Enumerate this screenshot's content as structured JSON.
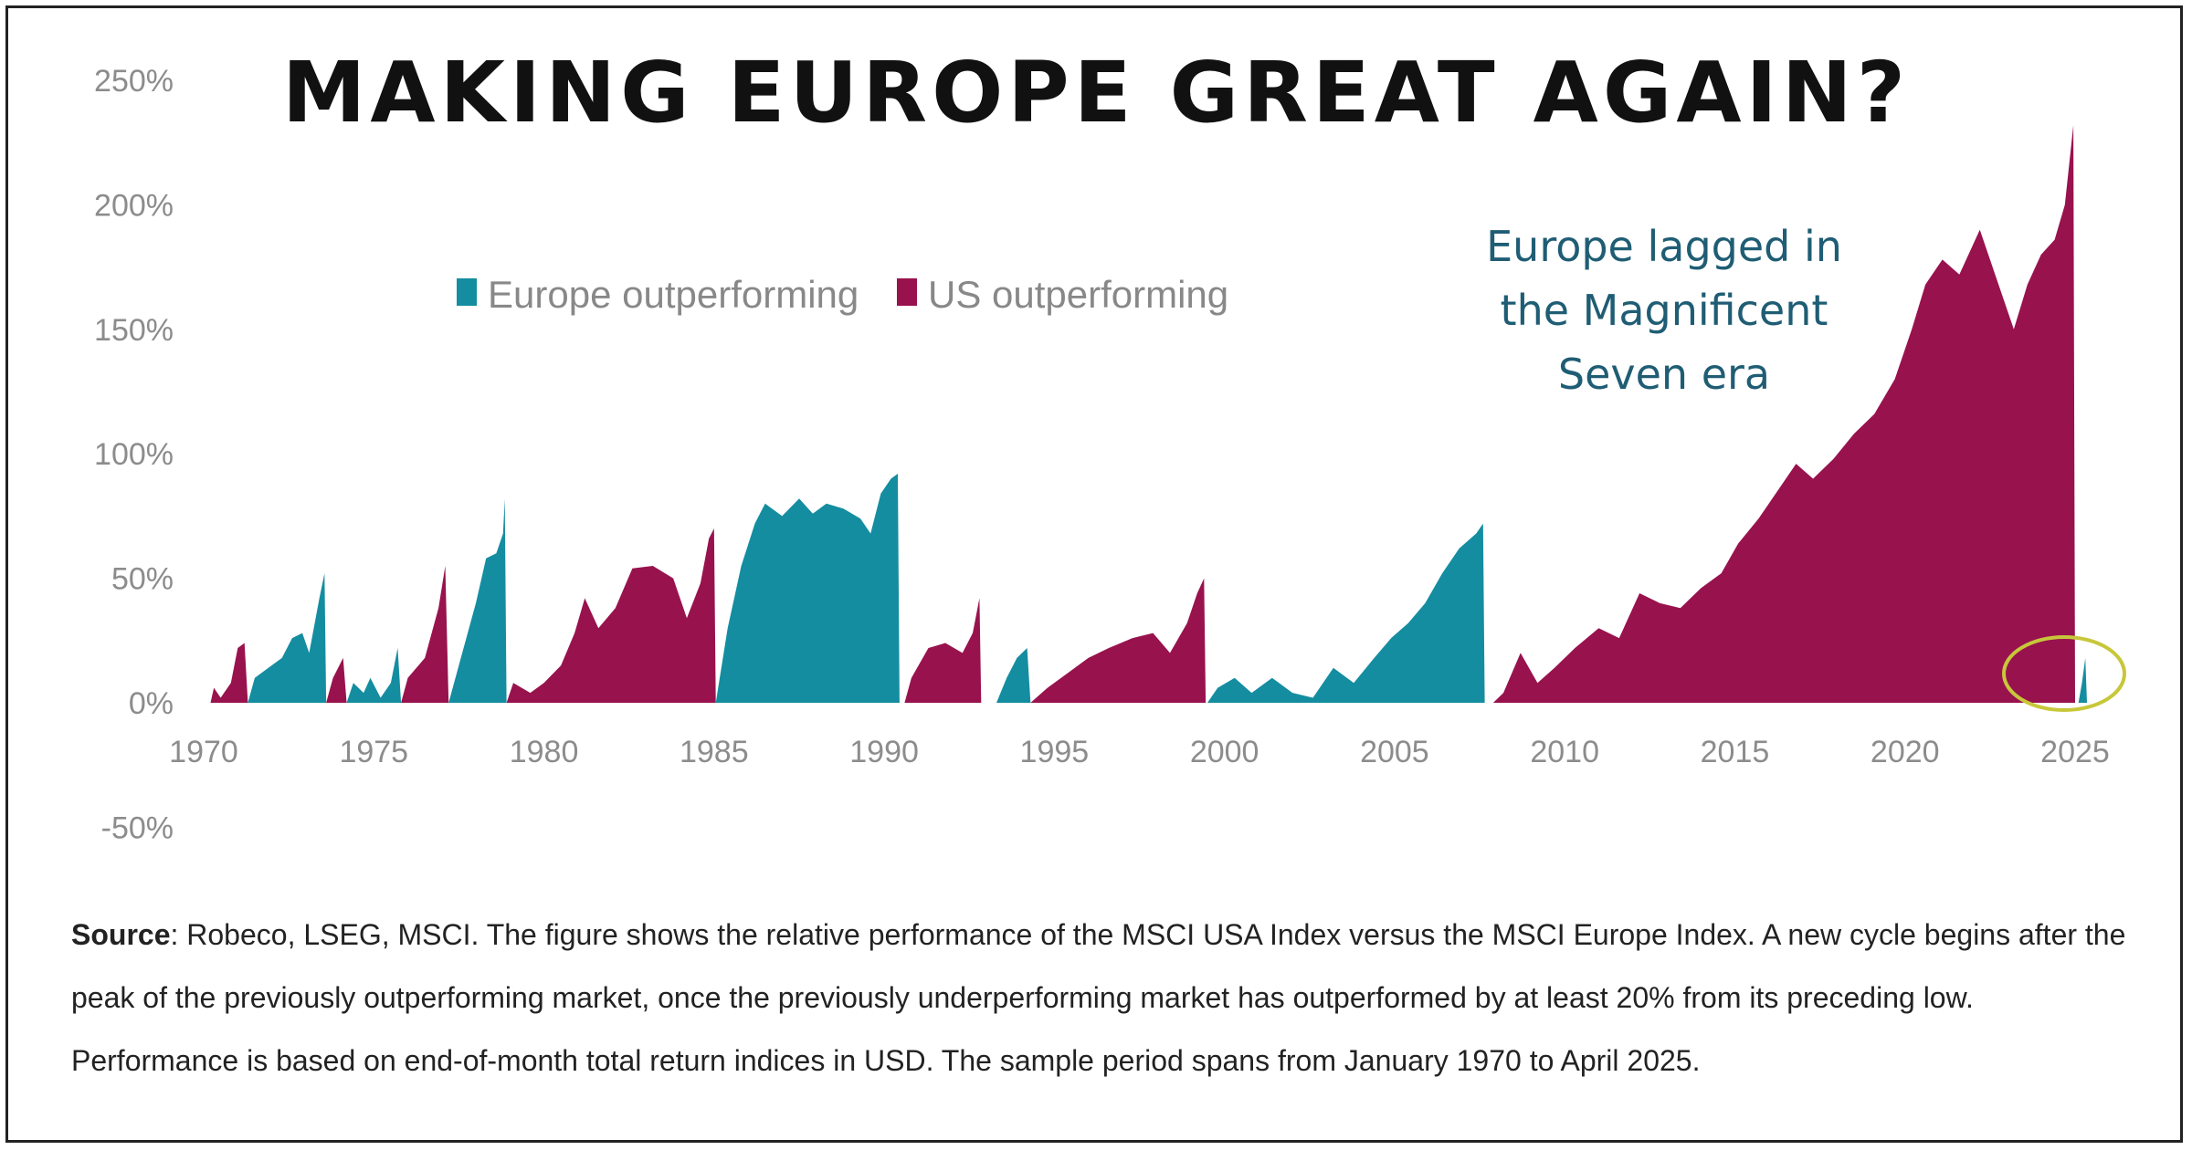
{
  "title": "MAKING EUROPE GREAT AGAIN?",
  "colors": {
    "europe": "#148da0",
    "us": "#98124e",
    "annotation_text": "#1f5d74",
    "circle": "#c7c73a"
  },
  "annotation": {
    "lines": [
      "Europe lagged in",
      "the Magnificent",
      "Seven era"
    ]
  },
  "source": {
    "label": "Source",
    "text": ": Robeco, LSEG, MSCI. The figure shows the relative performance of the MSCI USA Index versus the MSCI Europe Index. A new cycle begins after the peak of the previously outperforming market, once the previously underperforming market has outperformed by at least 20% from its preceding low. Performance is based on end-of-month total return indices in USD. The sample period spans from January 1970 to April 2025."
  },
  "chart_data": {
    "type": "area",
    "x_range": [
      1970,
      2026.2
    ],
    "ylim": [
      -50,
      250
    ],
    "y_ticks": [
      "250%",
      "200%",
      "150%",
      "100%",
      "50%",
      "0%",
      "-50%"
    ],
    "y_tick_values": [
      250,
      200,
      150,
      100,
      50,
      0,
      -50
    ],
    "x_ticks": [
      "1970",
      "1975",
      "1980",
      "1985",
      "1990",
      "1995",
      "2000",
      "2005",
      "2010",
      "2015",
      "2020",
      "2025"
    ],
    "x_tick_values": [
      1970,
      1975,
      1980,
      1985,
      1990,
      1995,
      2000,
      2005,
      2010,
      2015,
      2020,
      2025
    ],
    "legend": [
      {
        "name": "Europe outperforming",
        "color": "#148da0"
      },
      {
        "name": "US outperforming",
        "color": "#98124e"
      }
    ],
    "series": [
      {
        "name": "US outperforming",
        "points": [
          [
            1970.2,
            0
          ],
          [
            1970.3,
            6
          ],
          [
            1970.5,
            2
          ],
          [
            1970.8,
            8
          ],
          [
            1971.0,
            22
          ],
          [
            1971.2,
            24
          ],
          [
            1971.3,
            0
          ]
        ]
      },
      {
        "name": "Europe outperforming",
        "points": [
          [
            1971.3,
            0
          ],
          [
            1971.5,
            10
          ],
          [
            1971.9,
            14
          ],
          [
            1972.3,
            18
          ],
          [
            1972.6,
            26
          ],
          [
            1972.9,
            28
          ],
          [
            1973.1,
            20
          ],
          [
            1973.4,
            42
          ],
          [
            1973.55,
            52
          ],
          [
            1973.6,
            0
          ]
        ]
      },
      {
        "name": "US outperforming",
        "points": [
          [
            1973.6,
            0
          ],
          [
            1973.8,
            10
          ],
          [
            1974.1,
            18
          ],
          [
            1974.2,
            0
          ]
        ]
      },
      {
        "name": "Europe outperforming",
        "points": [
          [
            1974.2,
            0
          ],
          [
            1974.4,
            8
          ],
          [
            1974.7,
            4
          ],
          [
            1974.9,
            10
          ],
          [
            1975.2,
            2
          ],
          [
            1975.5,
            8
          ],
          [
            1975.7,
            22
          ],
          [
            1975.8,
            0
          ]
        ]
      },
      {
        "name": "US outperforming",
        "points": [
          [
            1975.8,
            0
          ],
          [
            1976.0,
            10
          ],
          [
            1976.5,
            18
          ],
          [
            1976.9,
            38
          ],
          [
            1977.1,
            55
          ],
          [
            1977.2,
            0
          ]
        ]
      },
      {
        "name": "Europe outperforming",
        "points": [
          [
            1977.2,
            0
          ],
          [
            1977.6,
            20
          ],
          [
            1978.0,
            40
          ],
          [
            1978.3,
            58
          ],
          [
            1978.6,
            60
          ],
          [
            1978.8,
            68
          ],
          [
            1978.85,
            82
          ],
          [
            1978.9,
            0
          ]
        ]
      },
      {
        "name": "US outperforming",
        "points": [
          [
            1978.9,
            0
          ],
          [
            1979.1,
            8
          ],
          [
            1979.6,
            4
          ],
          [
            1980.0,
            8
          ],
          [
            1980.5,
            15
          ],
          [
            1980.9,
            28
          ],
          [
            1981.2,
            42
          ],
          [
            1981.6,
            30
          ],
          [
            1982.1,
            38
          ],
          [
            1982.6,
            54
          ],
          [
            1983.2,
            55
          ],
          [
            1983.8,
            50
          ],
          [
            1984.2,
            34
          ],
          [
            1984.6,
            48
          ],
          [
            1984.85,
            66
          ],
          [
            1985.0,
            70
          ],
          [
            1985.05,
            0
          ]
        ]
      },
      {
        "name": "Europe outperforming",
        "points": [
          [
            1985.05,
            0
          ],
          [
            1985.4,
            30
          ],
          [
            1985.8,
            55
          ],
          [
            1986.2,
            72
          ],
          [
            1986.5,
            80
          ],
          [
            1987.0,
            75
          ],
          [
            1987.5,
            82
          ],
          [
            1987.9,
            76
          ],
          [
            1988.3,
            80
          ],
          [
            1988.8,
            78
          ],
          [
            1989.3,
            74
          ],
          [
            1989.6,
            68
          ],
          [
            1989.9,
            84
          ],
          [
            1990.2,
            90
          ],
          [
            1990.4,
            92
          ],
          [
            1990.45,
            0
          ]
        ]
      },
      {
        "name": "US outperforming",
        "points": [
          [
            1990.6,
            0
          ],
          [
            1990.8,
            10
          ],
          [
            1991.3,
            22
          ],
          [
            1991.8,
            24
          ],
          [
            1992.3,
            20
          ],
          [
            1992.6,
            28
          ],
          [
            1992.8,
            42
          ],
          [
            1992.85,
            0
          ]
        ]
      },
      {
        "name": "Europe outperforming",
        "points": [
          [
            1993.3,
            0
          ],
          [
            1993.6,
            10
          ],
          [
            1993.9,
            18
          ],
          [
            1994.2,
            22
          ],
          [
            1994.3,
            0
          ]
        ]
      },
      {
        "name": "US outperforming",
        "points": [
          [
            1994.3,
            0
          ],
          [
            1994.8,
            6
          ],
          [
            1995.4,
            12
          ],
          [
            1996.0,
            18
          ],
          [
            1996.6,
            22
          ],
          [
            1997.3,
            26
          ],
          [
            1997.9,
            28
          ],
          [
            1998.4,
            20
          ],
          [
            1998.9,
            32
          ],
          [
            1999.2,
            44
          ],
          [
            1999.4,
            50
          ],
          [
            1999.45,
            0
          ]
        ]
      },
      {
        "name": "Europe outperforming",
        "points": [
          [
            1999.5,
            0
          ],
          [
            1999.8,
            6
          ],
          [
            2000.3,
            10
          ],
          [
            2000.8,
            4
          ],
          [
            2001.4,
            10
          ],
          [
            2002.0,
            4
          ],
          [
            2002.6,
            2
          ],
          [
            2003.2,
            14
          ],
          [
            2003.8,
            8
          ],
          [
            2004.4,
            18
          ],
          [
            2004.9,
            26
          ],
          [
            2005.4,
            32
          ],
          [
            2005.9,
            40
          ],
          [
            2006.4,
            52
          ],
          [
            2006.9,
            62
          ],
          [
            2007.4,
            68
          ],
          [
            2007.6,
            72
          ],
          [
            2007.65,
            0
          ]
        ]
      },
      {
        "name": "US outperforming",
        "points": [
          [
            2007.9,
            0
          ],
          [
            2008.2,
            4
          ],
          [
            2008.7,
            20
          ],
          [
            2009.2,
            8
          ],
          [
            2009.7,
            14
          ],
          [
            2010.3,
            22
          ],
          [
            2011.0,
            30
          ],
          [
            2011.6,
            26
          ],
          [
            2012.2,
            44
          ],
          [
            2012.8,
            40
          ],
          [
            2013.4,
            38
          ],
          [
            2014.0,
            46
          ],
          [
            2014.6,
            52
          ],
          [
            2015.1,
            64
          ],
          [
            2015.7,
            74
          ],
          [
            2016.3,
            86
          ],
          [
            2016.8,
            96
          ],
          [
            2017.3,
            90
          ],
          [
            2017.9,
            98
          ],
          [
            2018.5,
            108
          ],
          [
            2019.1,
            116
          ],
          [
            2019.7,
            130
          ],
          [
            2020.2,
            150
          ],
          [
            2020.6,
            168
          ],
          [
            2021.1,
            178
          ],
          [
            2021.6,
            172
          ],
          [
            2022.2,
            190
          ],
          [
            2022.7,
            170
          ],
          [
            2023.2,
            150
          ],
          [
            2023.6,
            168
          ],
          [
            2024.0,
            180
          ],
          [
            2024.4,
            186
          ],
          [
            2024.7,
            200
          ],
          [
            2024.95,
            232
          ],
          [
            2025.0,
            0
          ]
        ]
      },
      {
        "name": "Europe outperforming",
        "points": [
          [
            2025.1,
            0
          ],
          [
            2025.2,
            8
          ],
          [
            2025.3,
            18
          ],
          [
            2025.35,
            0
          ]
        ]
      }
    ]
  }
}
